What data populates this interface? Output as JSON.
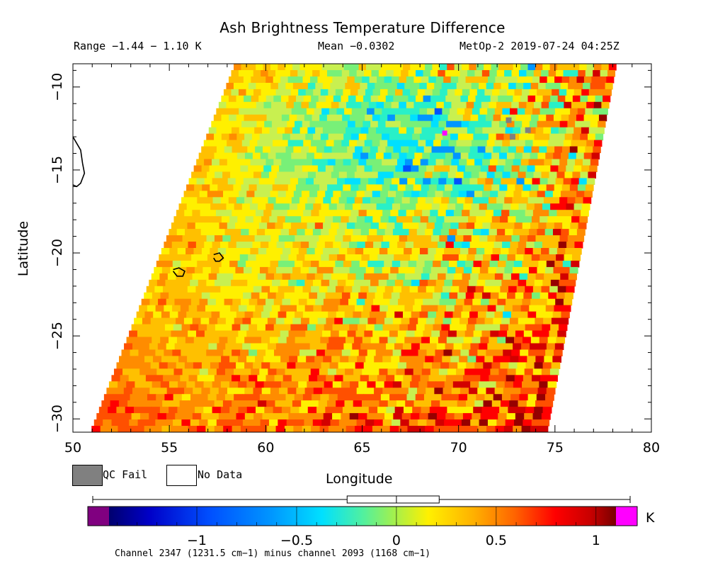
{
  "chart_data": {
    "type": "heatmap",
    "title": "Ash Brightness Temperature Difference",
    "range_label": "Range −1.44 − 1.10 K",
    "mean_label": "Mean −0.0302",
    "satellite_label": "MetOp-2 2019-07-24 04:25Z",
    "xlabel": "Longitude",
    "ylabel": "Latitude",
    "xlim": [
      50,
      80
    ],
    "ylim": [
      -30.8,
      -8.6
    ],
    "xticks": [
      50,
      55,
      60,
      65,
      70,
      75,
      80
    ],
    "yticks": [
      -10,
      -15,
      -20,
      -25,
      -30
    ],
    "ytick_labels": [
      "−10",
      "−15",
      "−20",
      "−25",
      "−30"
    ],
    "swath": {
      "top_west_lon": 58.4,
      "top_east_lon": 78.2,
      "bottom_west_lon": 50.9,
      "bottom_east_lon": 74.6,
      "top_lat": -8.6,
      "bottom_lat": -30.8
    },
    "colorbar": {
      "min": -1.44,
      "max": 1.1,
      "ticks": [
        -1,
        -0.5,
        0,
        0.5,
        1
      ],
      "tick_labels": [
        "−1",
        "−0.5",
        "0",
        "0.5",
        "1"
      ],
      "unit": "K",
      "under_color": "#800080",
      "over_color": "#ff00ff",
      "boxplot": {
        "whisker_low": -1.44,
        "q1": -0.24,
        "median": 0.0,
        "q3": 0.2,
        "whisker_high": 1.1
      }
    },
    "legend": [
      {
        "label": "QC Fail",
        "color": "#808080"
      },
      {
        "label": "No Data",
        "color": "#ffffff"
      }
    ],
    "channel_note": "Channel 2347 (1231.5 cm−1) minus channel 2093 (1168 cm−1)",
    "qc_fail_pixels": [
      [
        72.8,
        -13.0
      ],
      [
        73.6,
        -12.6
      ],
      [
        72.6,
        -12.0
      ]
    ],
    "over_range_pixels": [
      [
        69.3,
        -12.8
      ]
    ],
    "coastlines": [
      {
        "name": "Madagascar-coast",
        "points": [
          [
            50.0,
            -13.0
          ],
          [
            50.4,
            -13.8
          ],
          [
            50.5,
            -14.6
          ],
          [
            50.6,
            -15.2
          ],
          [
            50.4,
            -15.8
          ],
          [
            50.2,
            -16.0
          ],
          [
            50.0,
            -15.9
          ]
        ]
      },
      {
        "name": "Reunion",
        "points": [
          [
            55.2,
            -21.0
          ],
          [
            55.5,
            -20.9
          ],
          [
            55.8,
            -21.1
          ],
          [
            55.7,
            -21.4
          ],
          [
            55.4,
            -21.4
          ],
          [
            55.2,
            -21.1
          ]
        ]
      },
      {
        "name": "Mauritius",
        "points": [
          [
            57.3,
            -20.1
          ],
          [
            57.6,
            -20.0
          ],
          [
            57.8,
            -20.3
          ],
          [
            57.6,
            -20.5
          ],
          [
            57.4,
            -20.5
          ],
          [
            57.3,
            -20.3
          ]
        ]
      }
    ]
  },
  "palette": [
    "#800080",
    "#00006e",
    "#0000c8",
    "#0050ff",
    "#0096ff",
    "#00e0ff",
    "#28f0c8",
    "#78f078",
    "#c8f050",
    "#fff000",
    "#ffc000",
    "#ff8c00",
    "#ff5000",
    "#ff0000",
    "#d20000",
    "#960000",
    "#ff00ff"
  ]
}
